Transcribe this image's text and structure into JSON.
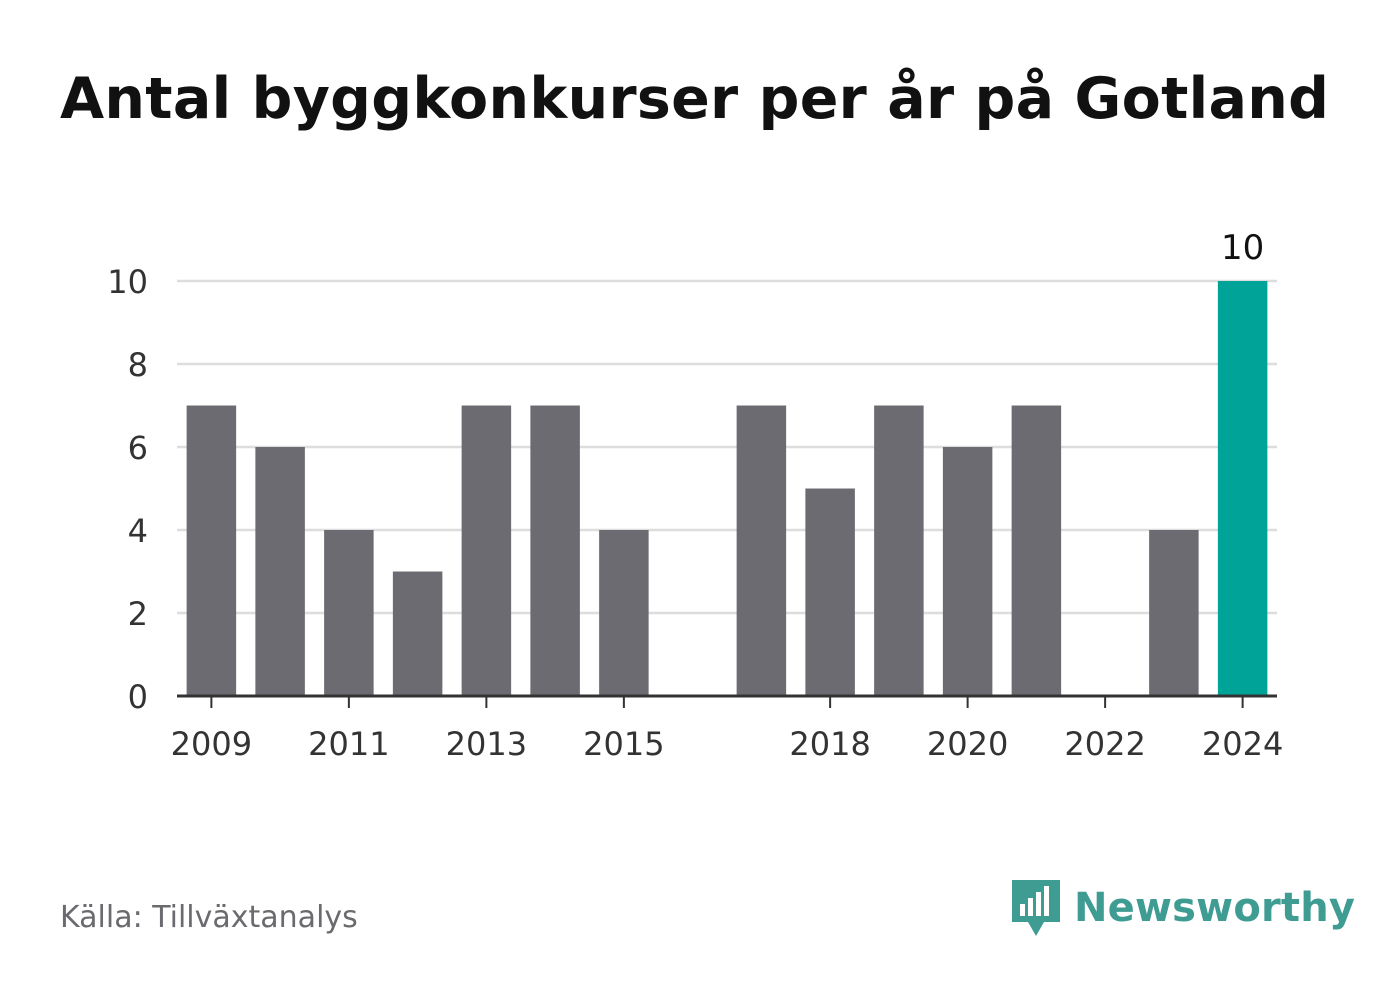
{
  "title": "Antal byggkonkurser per år på Gotland",
  "source": "Källa: Tillväxtanalys",
  "brand": {
    "name": "Newsworthy",
    "icon": "newsworthy-logo-icon"
  },
  "colors": {
    "bar": "#6c6b71",
    "highlight": "#00a398",
    "grid": "#dddddd",
    "axis": "#333333",
    "brand": "#3f9c93"
  },
  "chart_data": {
    "type": "bar",
    "categories": [
      "2009",
      "2010",
      "2011",
      "2012",
      "2013",
      "2014",
      "2015",
      "2016",
      "2017",
      "2018",
      "2019",
      "2020",
      "2021",
      "2022",
      "2023",
      "2024"
    ],
    "values": [
      7,
      6,
      4,
      3,
      7,
      7,
      4,
      0,
      7,
      5,
      7,
      6,
      7,
      0,
      4,
      10
    ],
    "x_tick_labels": [
      "2009",
      "2011",
      "2013",
      "2015",
      "2018",
      "2020",
      "2022",
      "2024"
    ],
    "y_ticks": [
      0,
      2,
      4,
      6,
      8,
      10
    ],
    "ylim": [
      0,
      10
    ],
    "highlight_category": "2024",
    "highlight_label": "10",
    "grid": true,
    "xlabel": "",
    "ylabel": ""
  }
}
